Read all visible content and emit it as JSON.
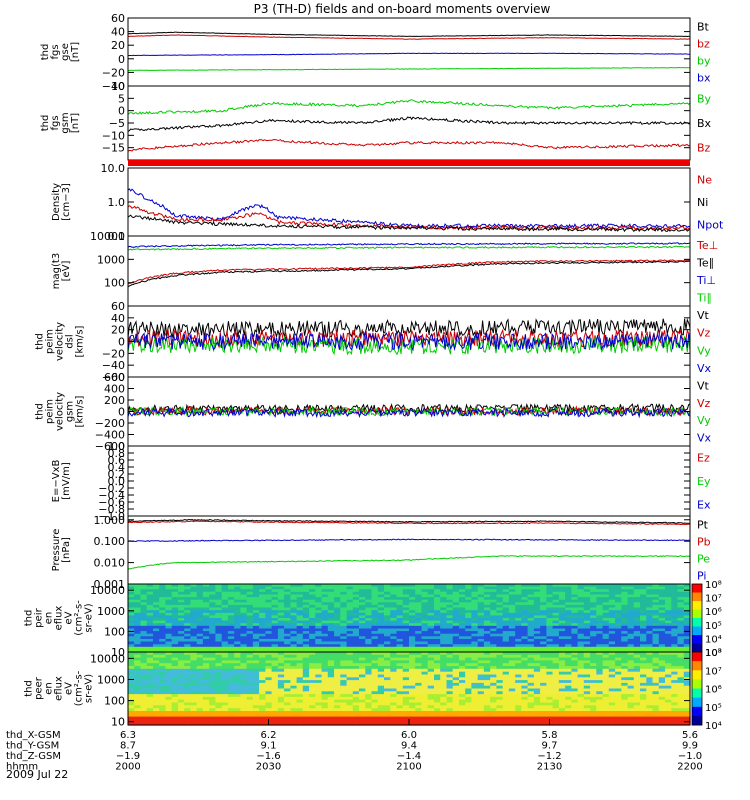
{
  "title": "P3 (TH-D) fields and on-board moments overview",
  "date_label": "2009 Jul 22",
  "chart_data": [
    {
      "type": "line",
      "panel": "fgs_gse",
      "ylabel": [
        "thd",
        "fgs",
        "gse",
        "[nT]"
      ],
      "ylim": [
        -40,
        60
      ],
      "ticks": [
        "60",
        "40",
        "20",
        "0",
        "−20",
        "−40"
      ],
      "tick_values": [
        60,
        40,
        20,
        0,
        -20,
        -40
      ],
      "legend": [
        {
          "name": "Bt",
          "color": "#000000"
        },
        {
          "name": "bz",
          "color": "#cc0000"
        },
        {
          "name": "by",
          "color": "#00cc00"
        },
        {
          "name": "bx",
          "color": "#0000cc"
        }
      ],
      "series": [
        {
          "name": "Bt",
          "color": "#000000",
          "x": [
            2000,
            2010,
            2030,
            2050,
            2100,
            2130,
            2200
          ],
          "values": [
            37,
            39,
            36,
            34,
            33,
            35,
            33
          ]
        },
        {
          "name": "bz",
          "color": "#cc0000",
          "x": [
            2000,
            2010,
            2030,
            2050,
            2100,
            2130,
            2200
          ],
          "values": [
            33,
            35,
            32,
            30,
            29,
            31,
            29
          ]
        },
        {
          "name": "by",
          "color": "#00cc00",
          "x": [
            2000,
            2030,
            2100,
            2130,
            2200
          ],
          "values": [
            -17,
            -16,
            -15,
            -14,
            -13
          ]
        },
        {
          "name": "bx",
          "color": "#0000cc",
          "x": [
            2000,
            2030,
            2100,
            2130,
            2200
          ],
          "values": [
            5,
            6,
            8,
            8,
            7
          ]
        }
      ]
    },
    {
      "type": "line",
      "panel": "fgs_gsm",
      "ylabel": [
        "thd",
        "fgs",
        "gsm",
        "[nT]"
      ],
      "ylim": [
        -20,
        10
      ],
      "ticks": [
        "10",
        "5",
        "0",
        "−5",
        "−10",
        "−15"
      ],
      "tick_values": [
        10,
        5,
        0,
        -5,
        -10,
        -15
      ],
      "legend": [
        {
          "name": "By",
          "color": "#00cc00"
        },
        {
          "name": "Bx",
          "color": "#000000"
        },
        {
          "name": "Bz",
          "color": "#cc0000"
        }
      ],
      "series": [
        {
          "name": "By",
          "color": "#00cc00",
          "x": [
            2000,
            2020,
            2030,
            2050,
            2100,
            2120,
            2130,
            2200
          ],
          "values": [
            -1,
            0,
            3,
            2,
            4,
            2,
            1,
            3
          ]
        },
        {
          "name": "Bx",
          "color": "#000000",
          "x": [
            2000,
            2020,
            2030,
            2050,
            2100,
            2120,
            2130,
            2200
          ],
          "values": [
            -8,
            -6,
            -4,
            -5,
            -3,
            -5,
            -5,
            -5
          ]
        },
        {
          "name": "Bz",
          "color": "#cc0000",
          "x": [
            2000,
            2020,
            2030,
            2050,
            2100,
            2120,
            2130,
            2200
          ],
          "values": [
            -16,
            -13,
            -12,
            -14,
            -13,
            -13,
            -15,
            -14
          ]
        }
      ]
    },
    {
      "type": "line",
      "panel": "density",
      "ylabel": [
        "Density",
        "[cm−3]"
      ],
      "yscale": "log",
      "ylim": [
        0.1,
        10
      ],
      "ticks": [
        "10.0",
        "1.0",
        "0.1"
      ],
      "tick_values": [
        10,
        1,
        0.1
      ],
      "legend": [
        {
          "name": "Ne",
          "color": "#cc0000"
        },
        {
          "name": "Ni",
          "color": "#000000"
        },
        {
          "name": "Npot",
          "color": "#0000cc"
        }
      ],
      "series": [
        {
          "name": "Npot",
          "color": "#0000cc",
          "x": [
            2000,
            2004,
            2010,
            2020,
            2028,
            2032,
            2050,
            2100,
            2200
          ],
          "values": [
            2.5,
            1.2,
            0.4,
            0.3,
            0.8,
            0.35,
            0.25,
            0.2,
            0.2
          ]
        },
        {
          "name": "Ne",
          "color": "#cc0000",
          "x": [
            2000,
            2004,
            2010,
            2020,
            2028,
            2032,
            2050,
            2100,
            2200
          ],
          "values": [
            0.8,
            0.5,
            0.3,
            0.3,
            0.45,
            0.25,
            0.2,
            0.18,
            0.17
          ]
        },
        {
          "name": "Ni",
          "color": "#000000",
          "x": [
            2000,
            2010,
            2030,
            2100,
            2200
          ],
          "values": [
            0.4,
            0.25,
            0.2,
            0.17,
            0.15
          ]
        }
      ]
    },
    {
      "type": "line",
      "panel": "temperature",
      "ylabel": [
        "mag(t3",
        "[eV]"
      ],
      "yscale": "log",
      "ylim": [
        10,
        10000
      ],
      "ticks": [
        "10000",
        "1000",
        "100"
      ],
      "tick_values": [
        10000,
        1000,
        100
      ],
      "legend": [
        {
          "name": "Te⊥",
          "color": "#cc0000"
        },
        {
          "name": "Te∥",
          "color": "#000000"
        },
        {
          "name": "Ti⊥",
          "color": "#0000cc"
        },
        {
          "name": "Ti∥",
          "color": "#00cc00"
        }
      ],
      "series": [
        {
          "name": "Ti⊥",
          "color": "#0000cc",
          "x": [
            2000,
            2030,
            2100,
            2200
          ],
          "values": [
            3500,
            4200,
            4500,
            4800
          ]
        },
        {
          "name": "Ti∥",
          "color": "#00cc00",
          "x": [
            2000,
            2030,
            2100,
            2200
          ],
          "values": [
            2600,
            3000,
            3200,
            3400
          ]
        },
        {
          "name": "Te⊥",
          "color": "#cc0000",
          "x": [
            2000,
            2010,
            2020,
            2040,
            2100,
            2120,
            2200
          ],
          "values": [
            90,
            250,
            350,
            400,
            450,
            800,
            900
          ]
        },
        {
          "name": "Te∥",
          "color": "#000000",
          "x": [
            2000,
            2010,
            2020,
            2040,
            2100,
            2120,
            2200
          ],
          "values": [
            70,
            200,
            280,
            330,
            400,
            650,
            800
          ]
        }
      ]
    },
    {
      "type": "line",
      "panel": "velocity_dsl",
      "ylabel": [
        "thd",
        "peim",
        "velocity",
        "dsl",
        "[km/s]"
      ],
      "ylim": [
        -60,
        60
      ],
      "ticks": [
        "60",
        "40",
        "20",
        "0",
        "−20",
        "−40",
        "−60"
      ],
      "tick_values": [
        60,
        40,
        20,
        0,
        -20,
        -40,
        -60
      ],
      "legend": [
        {
          "name": "Vt",
          "color": "#000000"
        },
        {
          "name": "Vz",
          "color": "#cc0000"
        },
        {
          "name": "Vy",
          "color": "#00cc00"
        },
        {
          "name": "Vx",
          "color": "#0000cc"
        }
      ],
      "series": [
        {
          "name": "Vt",
          "color": "#000000",
          "x": [
            2000,
            2100,
            2200
          ],
          "values": [
            20,
            22,
            25
          ]
        },
        {
          "name": "Vz",
          "color": "#cc0000",
          "x": [
            2000,
            2100,
            2200
          ],
          "values": [
            5,
            5,
            5
          ]
        },
        {
          "name": "Vy",
          "color": "#00cc00",
          "x": [
            2000,
            2100,
            2200
          ],
          "values": [
            -5,
            -8,
            -5
          ]
        },
        {
          "name": "Vx",
          "color": "#0000cc",
          "x": [
            2000,
            2100,
            2200
          ],
          "values": [
            0,
            0,
            0
          ]
        }
      ]
    },
    {
      "type": "line",
      "panel": "velocity_gsm",
      "ylabel": [
        "thd",
        "peim",
        "velocity",
        "gsm",
        "[km/s]"
      ],
      "ylim": [
        -600,
        600
      ],
      "ticks": [
        "600",
        "400",
        "200",
        "0",
        "−200",
        "−400",
        "−600"
      ],
      "tick_values": [
        600,
        400,
        200,
        0,
        -200,
        -400,
        -600
      ],
      "legend": [
        {
          "name": "Vt",
          "color": "#000000"
        },
        {
          "name": "Vz",
          "color": "#cc0000"
        },
        {
          "name": "Vy",
          "color": "#00cc00"
        },
        {
          "name": "Vx",
          "color": "#0000cc"
        }
      ],
      "series": [
        {
          "name": "Vt",
          "color": "#000000",
          "x": [
            2000,
            2100,
            2200
          ],
          "values": [
            40,
            50,
            60
          ]
        },
        {
          "name": "Vz",
          "color": "#cc0000",
          "x": [
            2000,
            2100,
            2200
          ],
          "values": [
            10,
            10,
            10
          ]
        },
        {
          "name": "Vy",
          "color": "#00cc00",
          "x": [
            2000,
            2100,
            2200
          ],
          "values": [
            0,
            0,
            0
          ]
        },
        {
          "name": "Vx",
          "color": "#0000cc",
          "x": [
            2000,
            2100,
            2200
          ],
          "values": [
            -20,
            -20,
            -20
          ]
        }
      ]
    },
    {
      "type": "line",
      "panel": "efield",
      "ylabel": [
        "E=−VxB",
        "[mV/m]"
      ],
      "ylim": [
        -1,
        1
      ],
      "ticks": [
        "1.0",
        "0.8",
        "0.6",
        "0.4",
        "0.2",
        "0.0",
        "−0.2",
        "−0.4",
        "−0.6",
        "−0.8",
        "−1.0"
      ],
      "tick_values": [
        1.0,
        0.8,
        0.6,
        0.4,
        0.2,
        0.0,
        -0.2,
        -0.4,
        -0.6,
        -0.8,
        -1.0
      ],
      "legend": [
        {
          "name": "Ez",
          "color": "#cc0000"
        },
        {
          "name": "Ey",
          "color": "#00cc00"
        },
        {
          "name": "Ex",
          "color": "#0000cc"
        }
      ],
      "series": []
    },
    {
      "type": "line",
      "panel": "pressure",
      "ylabel": [
        "Pressure",
        "[nPa]"
      ],
      "yscale": "log",
      "ylim": [
        0.001,
        1.5
      ],
      "ticks": [
        "1.000",
        "0.100",
        "0.010",
        "0.001"
      ],
      "tick_values": [
        1,
        0.1,
        0.01,
        0.001
      ],
      "legend": [
        {
          "name": "Pt",
          "color": "#000000"
        },
        {
          "name": "Pb",
          "color": "#cc0000"
        },
        {
          "name": "Pe",
          "color": "#00cc00"
        },
        {
          "name": "Pi",
          "color": "#0000cc"
        }
      ],
      "series": [
        {
          "name": "Pt",
          "color": "#000000",
          "x": [
            2000,
            2015,
            2030,
            2100,
            2130,
            2200
          ],
          "values": [
            0.85,
            1.0,
            0.9,
            0.8,
            0.85,
            0.7
          ]
        },
        {
          "name": "Pb",
          "color": "#cc0000",
          "x": [
            2000,
            2015,
            2030,
            2100,
            2130,
            2200
          ],
          "values": [
            0.75,
            0.85,
            0.78,
            0.68,
            0.7,
            0.62
          ]
        },
        {
          "name": "Pi",
          "color": "#0000cc",
          "x": [
            2000,
            2030,
            2100,
            2200
          ],
          "values": [
            0.1,
            0.11,
            0.12,
            0.11
          ]
        },
        {
          "name": "Pe",
          "color": "#00cc00",
          "x": [
            2000,
            2010,
            2030,
            2100,
            2120,
            2200
          ],
          "values": [
            0.005,
            0.01,
            0.011,
            0.013,
            0.02,
            0.02
          ]
        }
      ]
    },
    {
      "type": "heatmap",
      "panel": "peir_eflux",
      "ylabel": [
        "thd",
        "peir",
        "en",
        "eflux",
        "eV",
        "(cm²-s-",
        "sr-eV)"
      ],
      "yscale": "log",
      "ylim": [
        10,
        20000
      ],
      "ticks": [
        "10000",
        "1000",
        "100",
        "10"
      ],
      "tick_values": [
        10000,
        1000,
        100,
        10
      ],
      "colorbar_ticks": [
        "10⁸",
        "10⁷",
        "10⁶",
        "10⁵",
        "10⁴",
        "10³"
      ],
      "colorbar_range": [
        3,
        8
      ]
    },
    {
      "type": "heatmap",
      "panel": "peer_eflux",
      "ylabel": [
        "thd",
        "peer",
        "en",
        "eflux",
        "eV",
        "(cm²-s-",
        "sr-eV)"
      ],
      "yscale": "log",
      "ylim": [
        7,
        20000
      ],
      "ticks": [
        "10000",
        "1000",
        "100",
        "10"
      ],
      "tick_values": [
        10000,
        1000,
        100,
        10
      ],
      "colorbar_ticks": [
        "10⁸",
        "10⁷",
        "10⁶",
        "10⁵",
        "10⁴"
      ],
      "colorbar_range": [
        4,
        8
      ]
    }
  ],
  "x_axis": {
    "range": [
      2000,
      2200
    ],
    "rows": [
      {
        "name": "thd_X-GSM",
        "values": [
          "6.3",
          "6.2",
          "6.0",
          "5.8",
          "5.6"
        ]
      },
      {
        "name": "thd_Y-GSM",
        "values": [
          "8.7",
          "9.1",
          "9.4",
          "9.7",
          "9.9"
        ]
      },
      {
        "name": "thd_Z-GSM",
        "values": [
          "−1.9",
          "−1.6",
          "−1.4",
          "−1.2",
          "−1.0"
        ]
      },
      {
        "name": "hhmm",
        "values": [
          "2000",
          "2030",
          "2100",
          "2130",
          "2200"
        ]
      }
    ]
  }
}
